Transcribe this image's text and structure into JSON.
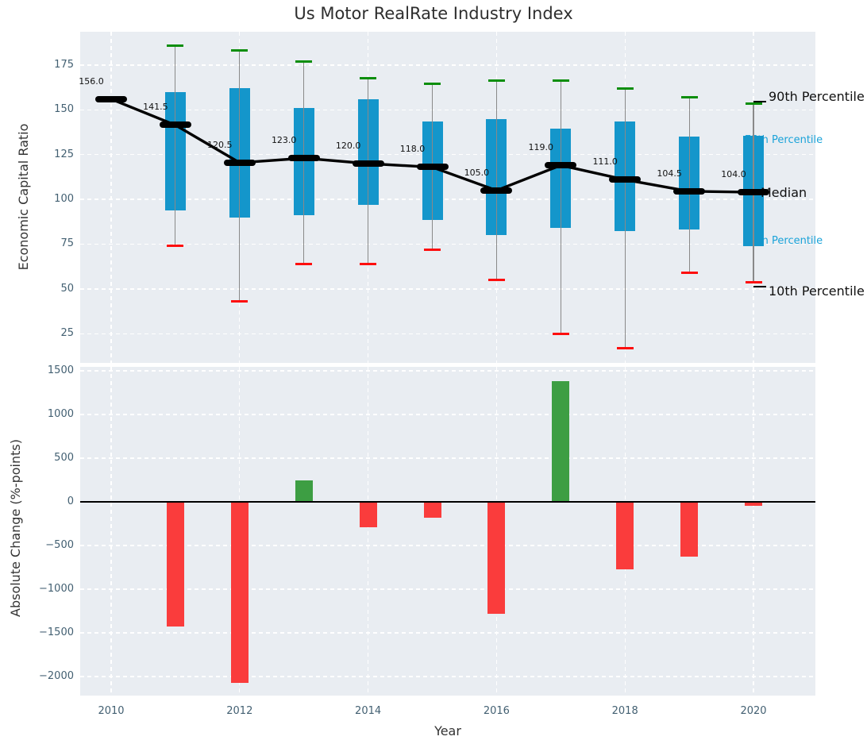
{
  "title": "Us Motor RealRate Industry Index",
  "chart_data": [
    {
      "type": "boxplot",
      "title": "Us Motor RealRate Industry Index",
      "ylabel": "Economic Capital Ratio",
      "ylim": [
        8.7,
        193.6
      ],
      "yticks": [
        25,
        50,
        75,
        100,
        125,
        150,
        175
      ],
      "grid": true,
      "x": [
        2010,
        2011,
        2012,
        2013,
        2014,
        2015,
        2016,
        2017,
        2018,
        2019,
        2020
      ],
      "series": [
        {
          "name": "Median",
          "values": [
            156.0,
            141.5,
            120.5,
            123.0,
            120.0,
            118.0,
            105.0,
            119.0,
            111.0,
            104.5,
            104.0
          ]
        },
        {
          "name": "90th Percentile",
          "values": [
            null,
            186,
            183,
            177,
            167.5,
            164.5,
            166.5,
            166.5,
            162,
            157,
            153.5
          ]
        },
        {
          "name": "75th Percentile",
          "values": [
            null,
            160,
            162,
            151,
            156,
            143.5,
            145,
            139.5,
            143.5,
            135,
            135.5
          ]
        },
        {
          "name": "25th Percentile",
          "values": [
            null,
            94,
            90,
            91,
            97,
            88.5,
            80,
            84,
            82.5,
            83,
            74
          ]
        },
        {
          "name": "10th Percentile",
          "values": [
            null,
            74,
            43,
            64,
            64,
            72,
            55,
            25,
            17,
            59,
            53.5
          ]
        }
      ],
      "median_labels": [
        "156.0",
        "141.5",
        "120.5",
        "123.0",
        "120.0",
        "118.0",
        "105.0",
        "119.0",
        "111.0",
        "104.5",
        "104.0"
      ],
      "annotations": [
        "90th Percentile",
        "75th Percentile",
        "Median",
        "25th Percentile",
        "10th Percentile"
      ]
    },
    {
      "type": "bar",
      "ylabel": "Absolute Change (%-points)",
      "xlabel": "Year",
      "ylim": [
        -2220,
        1545
      ],
      "yticks": [
        1500,
        1000,
        500,
        0,
        -500,
        -1000,
        -1500,
        -2000
      ],
      "xticks": [
        2010,
        2012,
        2014,
        2016,
        2018,
        2020
      ],
      "grid": true,
      "categories": [
        2010,
        2011,
        2012,
        2013,
        2014,
        2015,
        2016,
        2017,
        2018,
        2019,
        2020
      ],
      "values": [
        null,
        -1430,
        -2075,
        245,
        -290,
        -180,
        -1280,
        1385,
        -775,
        -630,
        -45
      ]
    }
  ],
  "colors": {
    "box": "#1496cb",
    "whisker": "#898989",
    "cap_high": "#0c8e0c",
    "cap_low": "#fd0e0e",
    "median": "#000000",
    "bar_positive": "#3d9e43",
    "bar_negative": "#fa3c3c",
    "plot_bg": "#e9edf2",
    "tick_label": "#436072",
    "annotation_blue": "#1ba3d9"
  }
}
